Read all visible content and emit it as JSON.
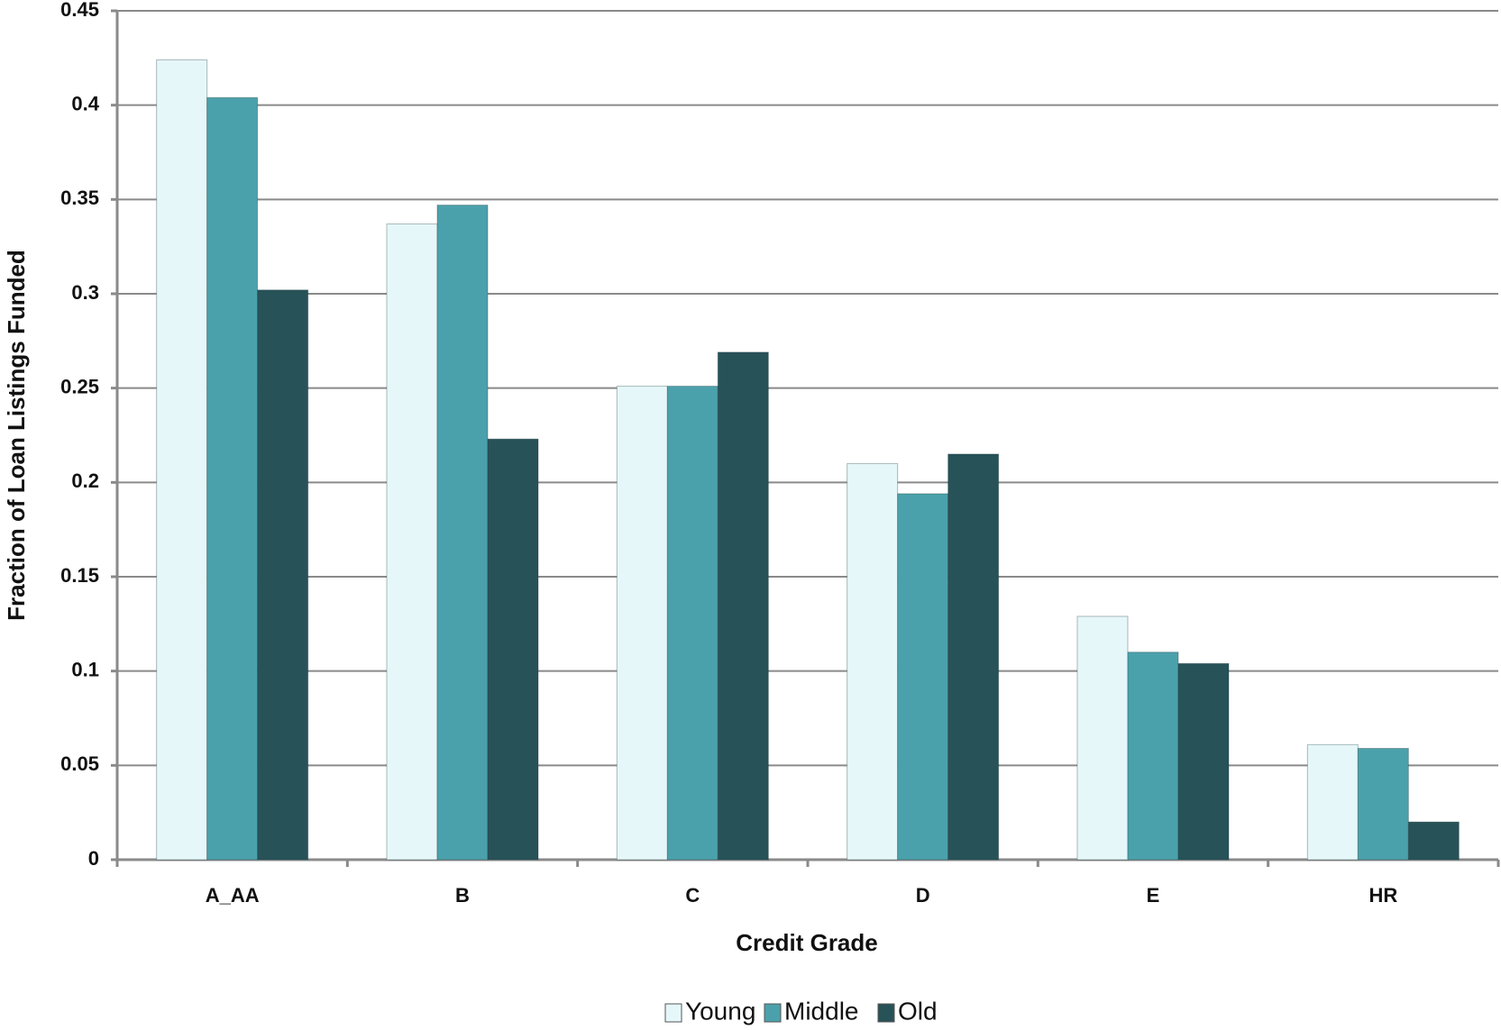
{
  "chart_data": {
    "type": "bar",
    "x_label": "Credit Grade",
    "y_label": "Fraction of Loan Listings Funded",
    "categories": [
      "A_AA",
      "B",
      "C",
      "D",
      "E",
      "HR"
    ],
    "series": [
      {
        "name": "Young",
        "color": "#e6f7fa",
        "values": [
          0.424,
          0.337,
          0.251,
          0.21,
          0.129,
          0.061
        ]
      },
      {
        "name": "Middle",
        "color": "#4ba1ab",
        "values": [
          0.404,
          0.347,
          0.251,
          0.194,
          0.11,
          0.059
        ]
      },
      {
        "name": "Old",
        "color": "#275258",
        "values": [
          0.302,
          0.223,
          0.269,
          0.215,
          0.104,
          0.02
        ]
      }
    ],
    "ylim": [
      0,
      0.45
    ],
    "yticks": [
      0,
      0.05,
      0.1,
      0.15,
      0.2,
      0.25,
      0.3,
      0.35,
      0.4,
      0.45
    ],
    "grid": true,
    "legend": "bottom"
  }
}
